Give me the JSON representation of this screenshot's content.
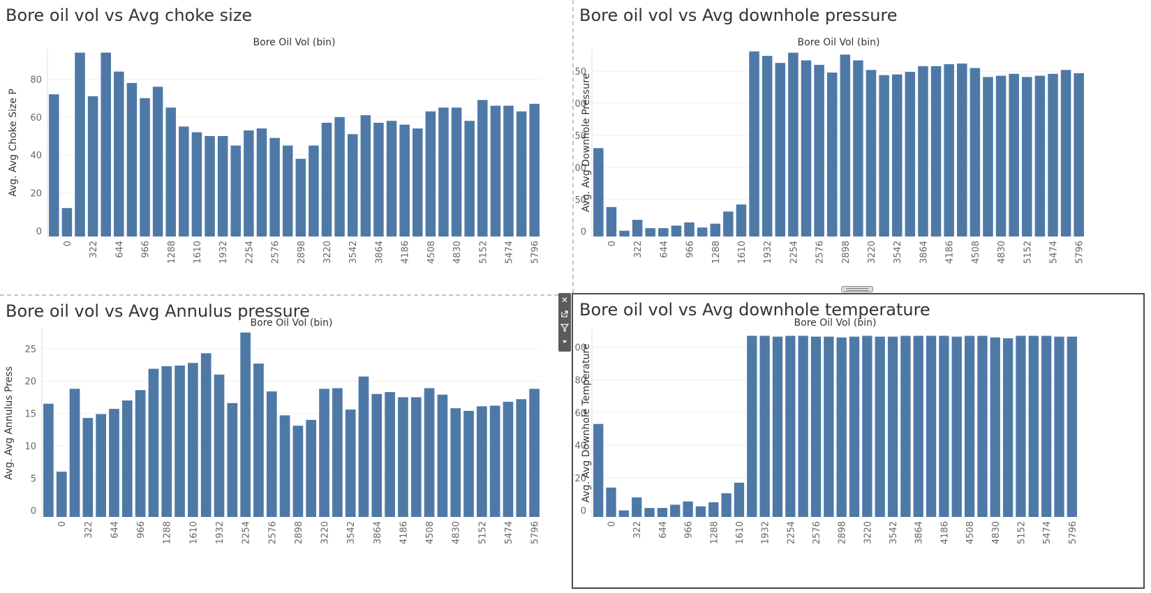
{
  "colors": {
    "bar": "#4e79a7",
    "grid": "#efefef",
    "axis_text": "#666666",
    "label_text": "#333333"
  },
  "toolbar": {
    "close_icon": "close-icon",
    "popout_icon": "popout-icon",
    "filter_icon": "filter-icon",
    "menu_icon": "chevron-down-icon"
  },
  "chart_data": [
    {
      "type": "bar",
      "title": "Bore oil vol vs Avg choke size",
      "xlabel": "Bore Oil Vol (bin)",
      "ylabel": "Avg. Avg Choke Size P",
      "ylim": [
        -3,
        96
      ],
      "yticks": [
        0,
        20,
        40,
        60,
        80
      ],
      "categories": [
        -161,
        0,
        161,
        322,
        483,
        644,
        805,
        966,
        1127,
        1288,
        1449,
        1610,
        1771,
        1932,
        2093,
        2254,
        2415,
        2576,
        2737,
        2898,
        3059,
        3220,
        3381,
        3542,
        3703,
        3864,
        4025,
        4186,
        4347,
        4508,
        4669,
        4830,
        4991,
        5152,
        5313,
        5474,
        5635,
        5796
      ],
      "tick_labels": [
        "",
        "0",
        "",
        "322",
        "",
        "644",
        "",
        "966",
        "",
        "1288",
        "",
        "1610",
        "",
        "1932",
        "",
        "2254",
        "",
        "2576",
        "",
        "2898",
        "",
        "3220",
        "",
        "3542",
        "",
        "3864",
        "",
        "4186",
        "",
        "4508",
        "",
        "4830",
        "",
        "5152",
        "",
        "5474",
        "",
        "5796"
      ],
      "values": [
        72,
        12,
        94,
        71,
        94,
        84,
        78,
        70,
        76,
        65,
        55,
        52,
        50,
        50,
        45,
        53,
        54,
        49,
        45,
        38,
        45,
        57,
        60,
        51,
        61,
        57,
        58,
        56,
        54,
        63,
        65,
        65,
        58,
        69,
        66,
        66,
        63,
        67
      ],
      "grid": true,
      "legend": "none"
    },
    {
      "type": "bar",
      "title": "Bore oil vol vs Avg downhole pressure",
      "xlabel": "Bore Oil Vol (bin)",
      "ylabel": "Avg. Avg Downhole Pressure",
      "ylim": [
        -8,
        285
      ],
      "yticks": [
        0,
        50,
        100,
        150,
        200,
        250
      ],
      "categories": [
        -161,
        0,
        161,
        322,
        483,
        644,
        805,
        966,
        1127,
        1288,
        1449,
        1610,
        1771,
        1932,
        2093,
        2254,
        2415,
        2576,
        2737,
        2898,
        3059,
        3220,
        3381,
        3542,
        3703,
        3864,
        4025,
        4186,
        4347,
        4508,
        4669,
        4830,
        4991,
        5152,
        5313,
        5474,
        5635,
        5796
      ],
      "tick_labels": [
        "",
        "0",
        "",
        "322",
        "",
        "644",
        "",
        "966",
        "",
        "1288",
        "",
        "1610",
        "",
        "1932",
        "",
        "2254",
        "",
        "2576",
        "",
        "2898",
        "",
        "3220",
        "",
        "3542",
        "",
        "3864",
        "",
        "4186",
        "",
        "4508",
        "",
        "4830",
        "",
        "5152",
        "",
        "5474",
        "",
        "5796"
      ],
      "values": [
        130,
        38,
        1,
        18,
        5,
        5,
        9,
        14,
        6,
        12,
        31,
        42,
        281,
        274,
        263,
        279,
        267,
        260,
        248,
        276,
        267,
        252,
        244,
        245,
        249,
        258,
        258,
        261,
        262,
        255,
        241,
        243,
        246,
        241,
        243,
        246,
        252,
        247
      ],
      "grid": true,
      "legend": "none"
    },
    {
      "type": "bar",
      "title": "Bore oil vol vs Avg Annulus pressure",
      "xlabel": "Bore Oil Vol (bin)",
      "ylabel": "Avg. Avg Annulus Press",
      "ylim": [
        -1,
        28
      ],
      "yticks": [
        0,
        5,
        10,
        15,
        20,
        25
      ],
      "categories": [
        -161,
        0,
        161,
        322,
        483,
        644,
        805,
        966,
        1127,
        1288,
        1449,
        1610,
        1771,
        1932,
        2093,
        2254,
        2415,
        2576,
        2737,
        2898,
        3059,
        3220,
        3381,
        3542,
        3703,
        3864,
        4025,
        4186,
        4347,
        4508,
        4669,
        4830,
        4991,
        5152,
        5313,
        5474,
        5635,
        5796
      ],
      "tick_labels": [
        "",
        "0",
        "",
        "322",
        "",
        "644",
        "",
        "966",
        "",
        "1288",
        "",
        "1610",
        "",
        "1932",
        "",
        "2254",
        "",
        "2576",
        "",
        "2898",
        "",
        "3220",
        "",
        "3542",
        "",
        "3864",
        "",
        "4186",
        "",
        "4508",
        "",
        "4830",
        "",
        "5152",
        "",
        "5474",
        "",
        "5796"
      ],
      "values": [
        16.5,
        6,
        18.8,
        14.3,
        14.9,
        15.7,
        17,
        18.6,
        21.9,
        22.3,
        22.4,
        22.8,
        24.3,
        21,
        16.6,
        27.5,
        22.7,
        18.4,
        14.7,
        13.1,
        14,
        18.8,
        18.9,
        15.6,
        20.7,
        18,
        18.3,
        17.5,
        17.5,
        18.9,
        17.9,
        15.8,
        15.4,
        16.1,
        16.2,
        16.8,
        17.2,
        18.8
      ],
      "grid": true,
      "legend": "none"
    },
    {
      "type": "bar",
      "title": "Bore oil vol vs Avg downhole temperature",
      "xlabel": "Bore Oil Vol (bin)",
      "ylabel": "Avg. Avg Downhole Temperature",
      "ylim": [
        -4,
        111
      ],
      "yticks": [
        0,
        20,
        40,
        60,
        80,
        100
      ],
      "categories": [
        -161,
        0,
        161,
        322,
        483,
        644,
        805,
        966,
        1127,
        1288,
        1449,
        1610,
        1771,
        1932,
        2093,
        2254,
        2415,
        2576,
        2737,
        2898,
        3059,
        3220,
        3381,
        3542,
        3703,
        3864,
        4025,
        4186,
        4347,
        4508,
        4669,
        4830,
        4991,
        5152,
        5313,
        5474,
        5635,
        5796
      ],
      "tick_labels": [
        "",
        "0",
        "",
        "322",
        "",
        "644",
        "",
        "966",
        "",
        "1288",
        "",
        "1610",
        "",
        "1932",
        "",
        "2254",
        "",
        "2576",
        "",
        "2898",
        "",
        "3220",
        "",
        "3542",
        "",
        "3864",
        "",
        "4186",
        "",
        "4508",
        "",
        "4830",
        "",
        "5152",
        "",
        "5474",
        "",
        "5796"
      ],
      "values": [
        53,
        14,
        0,
        8,
        1.5,
        1.5,
        3.5,
        5.5,
        2.5,
        5,
        10.5,
        17,
        107,
        107,
        106.5,
        107,
        107,
        106.5,
        106.5,
        106,
        106.5,
        107,
        106.5,
        106.5,
        107,
        107,
        107,
        107,
        106.5,
        107,
        107,
        106,
        105.5,
        107,
        107,
        107,
        106.5,
        106.5
      ],
      "grid": true,
      "legend": "none"
    }
  ]
}
